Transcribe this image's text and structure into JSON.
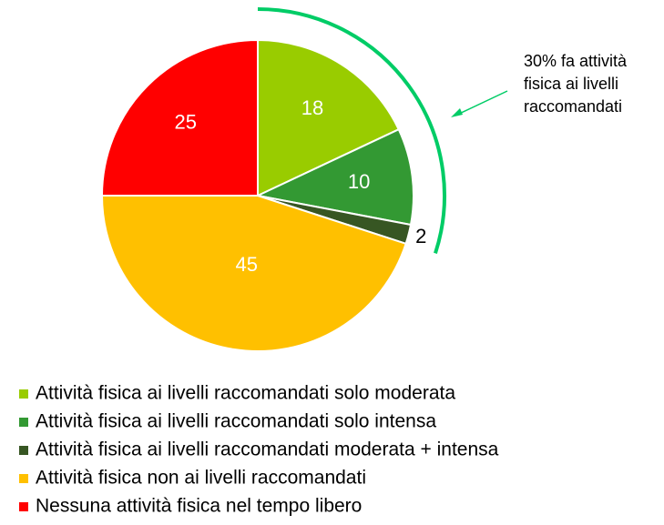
{
  "chart_data": {
    "type": "pie",
    "categories": [
      "Attività fisica ai livelli raccomandati solo moderata",
      "Attività fisica ai livelli raccomandati solo intensa",
      "Attività fisica ai livelli raccomandati moderata + intensa",
      "Attività fisica non ai livelli raccomandati",
      "Nessuna attività fisica nel tempo libero"
    ],
    "values": [
      18,
      10,
      2,
      45,
      25
    ],
    "colors": [
      "#99cc00",
      "#339933",
      "#375623",
      "#ffc000",
      "#ff0000"
    ],
    "annotation": [
      "30% fa attività",
      "fisica ai livelli",
      "raccomandati"
    ]
  }
}
